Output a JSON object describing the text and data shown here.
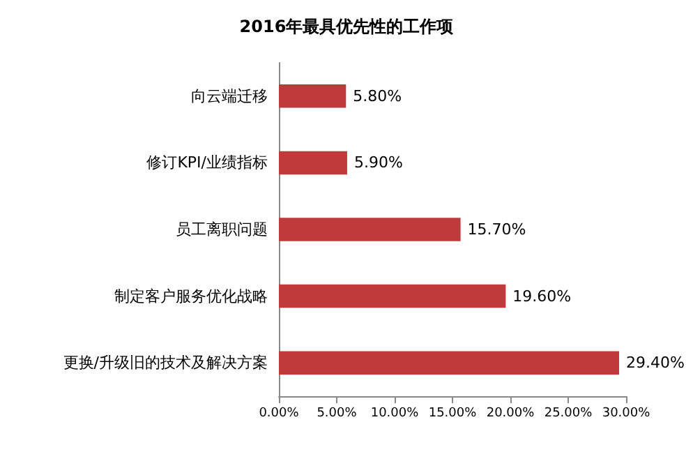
{
  "chart_data": {
    "type": "bar",
    "orientation": "horizontal",
    "title": "2016年最具优先性的工作项",
    "categories": [
      "向云端迁移",
      "修订KPI/业绩指标",
      "员工离职问题",
      "制定客户服务优化战略",
      "更换/升级旧的技术及解决方案"
    ],
    "values": [
      5.8,
      5.9,
      15.7,
      19.6,
      29.4
    ],
    "value_labels": [
      "5.80%",
      "5.90%",
      "15.70%",
      "19.60%",
      "29.40%"
    ],
    "color": "#c0393b",
    "xlim": [
      0,
      30
    ],
    "xticks": [
      {
        "value": 0,
        "label": "0.00%"
      },
      {
        "value": 5,
        "label": "5.00%"
      },
      {
        "value": 10,
        "label": "10.00%"
      },
      {
        "value": 15,
        "label": "15.00%"
      },
      {
        "value": 20,
        "label": "20.00%"
      },
      {
        "value": 25,
        "label": "25.00%"
      },
      {
        "value": 30,
        "label": "30.00%"
      }
    ],
    "grid": false
  }
}
